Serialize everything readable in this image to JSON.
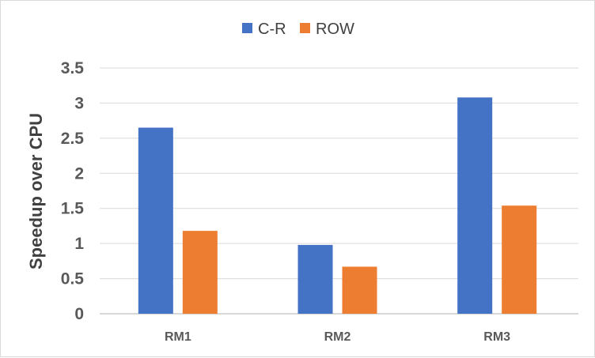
{
  "chart_data": {
    "type": "bar",
    "title": "",
    "xlabel": "",
    "ylabel": "Speedup over CPU",
    "categories": [
      "RM1",
      "RM2",
      "RM3"
    ],
    "series": [
      {
        "name": "C-R",
        "color": "#4472C4",
        "values": [
          2.65,
          0.98,
          3.08
        ]
      },
      {
        "name": "ROW",
        "color": "#ED7D31",
        "values": [
          1.18,
          0.67,
          1.54
        ]
      }
    ],
    "ylim": [
      0,
      3.5
    ],
    "yticks": [
      0,
      0.5,
      1,
      1.5,
      2,
      2.5,
      3,
      3.5
    ],
    "ytick_labels": [
      "0",
      "0.5",
      "1",
      "1.5",
      "2",
      "2.5",
      "3",
      "3.5"
    ],
    "grid": true,
    "legend_position": "top-center"
  }
}
